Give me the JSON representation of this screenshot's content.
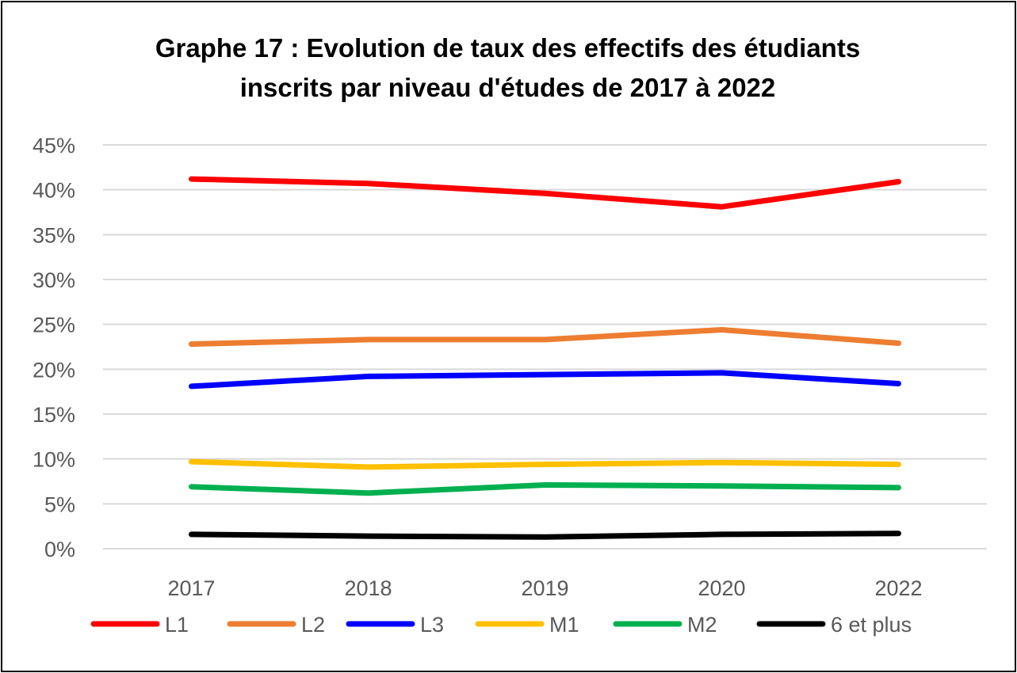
{
  "chart_data": {
    "type": "line",
    "title_line1": "Graphe 17 : Evolution de taux des effectifs des étudiants",
    "title_line2": "inscrits par niveau d'études de 2017 à 2022",
    "xlabel": "",
    "ylabel": "",
    "categories": [
      "2017",
      "2018",
      "2019",
      "2020",
      "2022"
    ],
    "ylim": [
      0,
      45
    ],
    "yticks": [
      "0%",
      "5%",
      "10%",
      "15%",
      "20%",
      "25%",
      "30%",
      "35%",
      "40%",
      "45%"
    ],
    "grid": "horizontal",
    "legend_position": "bottom",
    "series": [
      {
        "name": "L1",
        "color": "#FF0000",
        "values": [
          41.2,
          40.7,
          39.6,
          38.1,
          40.9
        ]
      },
      {
        "name": "L2",
        "color": "#ED7D31",
        "values": [
          22.8,
          23.3,
          23.3,
          24.4,
          22.9
        ]
      },
      {
        "name": "L3",
        "color": "#0000FF",
        "values": [
          18.1,
          19.2,
          19.4,
          19.6,
          18.4
        ]
      },
      {
        "name": "M1",
        "color": "#FFC000",
        "values": [
          9.7,
          9.1,
          9.4,
          9.6,
          9.4
        ]
      },
      {
        "name": "M2",
        "color": "#00B050",
        "values": [
          6.9,
          6.2,
          7.1,
          7.0,
          6.8
        ]
      },
      {
        "name": "6 et plus",
        "color": "#000000",
        "values": [
          1.6,
          1.4,
          1.3,
          1.6,
          1.7
        ]
      }
    ]
  }
}
